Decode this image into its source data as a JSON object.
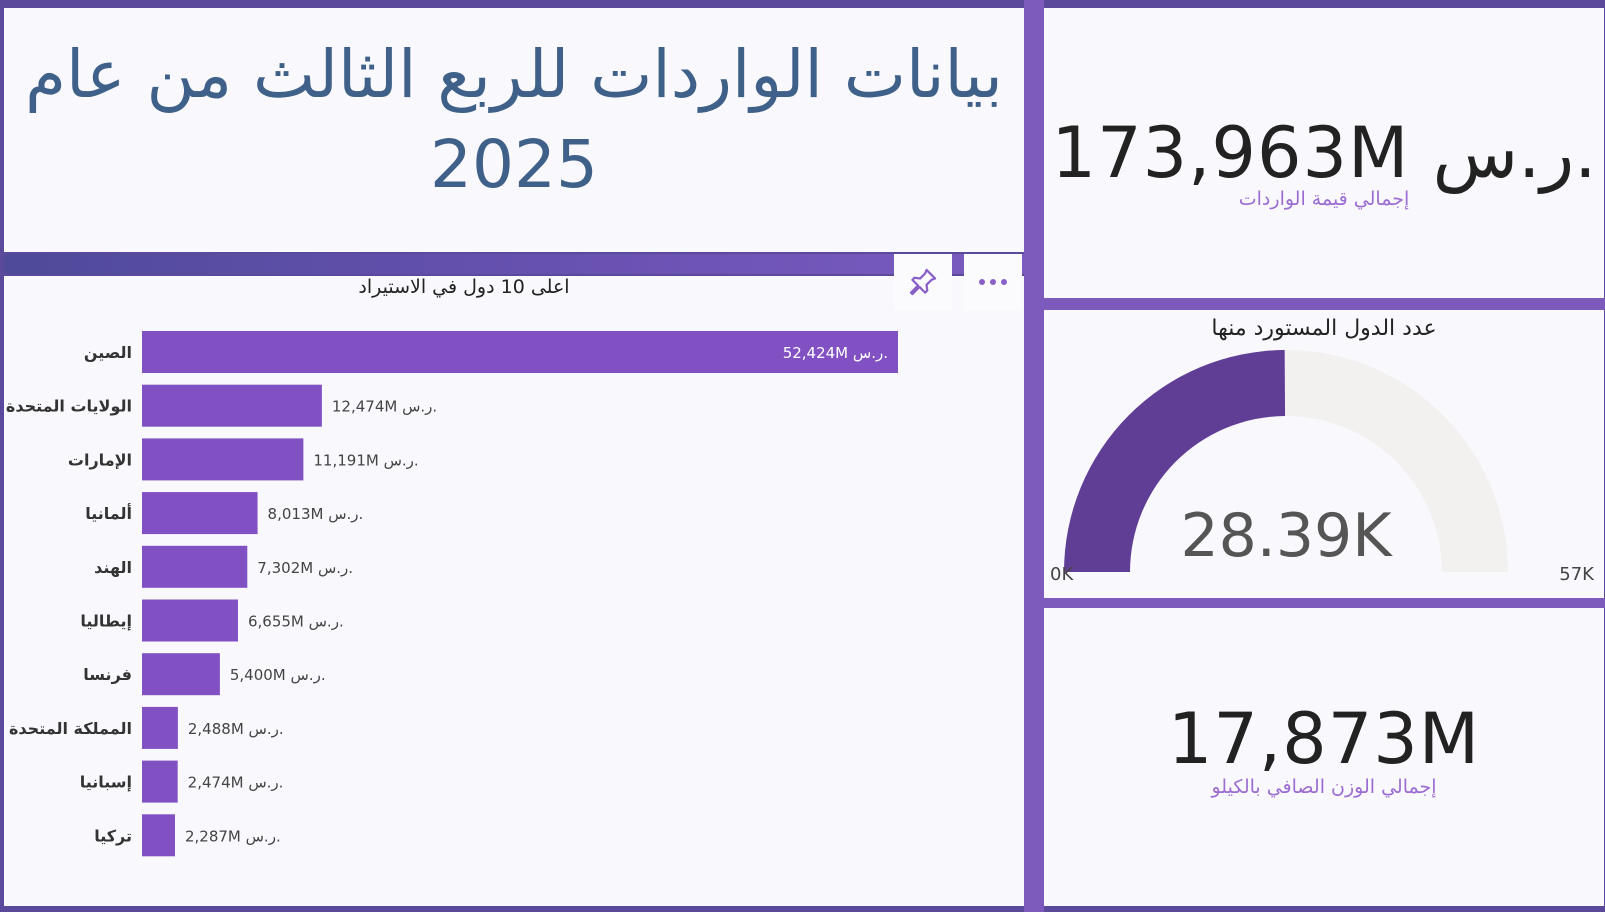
{
  "page_title": "بيانات الواردات للربع الثالث من عام 2025",
  "kpis": {
    "total_import_value": "173,963M ر.س.",
    "total_import_value_label": "إجمالي قيمة الواردات",
    "total_net_weight": "17,873M",
    "total_net_weight_label": "إجمالي الوزن الصافي بالكيلو"
  },
  "gauge": {
    "title": "عدد الدول المستورد منها",
    "value_label": "28.39K",
    "min_label": "0K",
    "max_label": "57K",
    "value": 28.39,
    "min": 0,
    "max": 57,
    "fill_color": "#613e96",
    "track_color": "#f2f1f0"
  },
  "chart_toolbar": {
    "pin_icon": "pin-icon",
    "more_icon": "more-options-icon"
  },
  "colors": {
    "bar": "#8150c3",
    "title": "#3f6189",
    "accent": "#7c5bbd"
  },
  "chart_data": {
    "type": "bar",
    "orientation": "horizontal",
    "title": "اعلى 10 دول في الاستيراد",
    "categories": [
      "الصين",
      "الولايات المتحدة",
      "الإمارات",
      "ألمانيا",
      "الهند",
      "إيطاليا",
      "فرنسا",
      "المملكة المتحدة",
      "إسبانيا",
      "تركيا"
    ],
    "values": [
      52424,
      12474,
      11191,
      8013,
      7302,
      6655,
      5400,
      2488,
      2474,
      2287
    ],
    "data_labels": [
      "52,424M ر.س.",
      "12,474M ر.س.",
      "11,191M ر.س.",
      "8,013M ر.س.",
      "7,302M ر.س.",
      "6,655M ر.س.",
      "5,400M ر.س.",
      "2,488M ر.س.",
      "2,474M ر.س.",
      "2,287M ر.س."
    ],
    "xlim": [
      0,
      52424
    ],
    "grid": false,
    "legend": "none"
  }
}
